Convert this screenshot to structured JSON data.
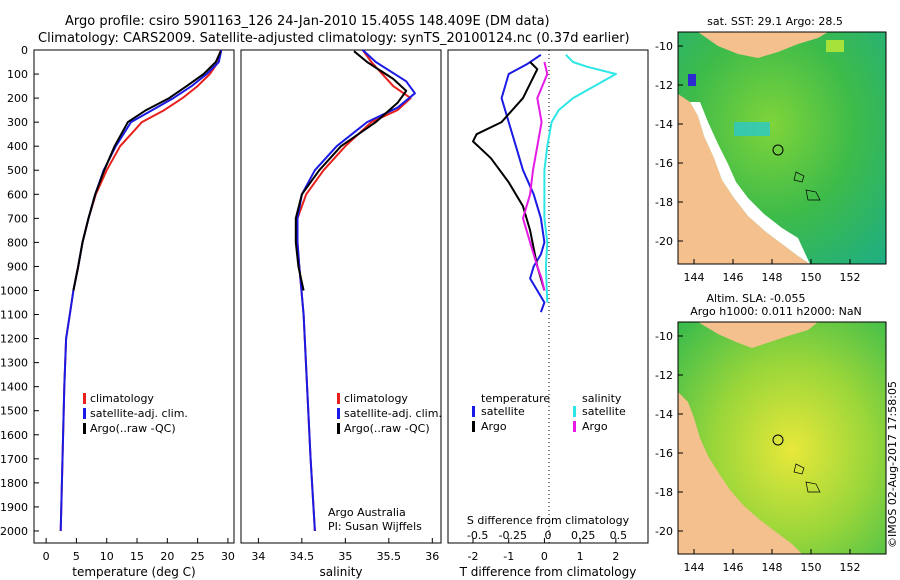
{
  "title": {
    "line1": "Argo profile: csiro 5901163_126 24-Jan-2010 15.405S 148.409E (DM data)",
    "line2": "Climatology: CARS2009. Satellite-adjusted climatology: synTS_20100124.nc (0.37d earlier)"
  },
  "colors": {
    "climatology": "#e8201c",
    "satellite": "#1a1ae6",
    "argo": "#000000",
    "sat_salinity": "#2ee6e6",
    "argo_salinity": "#e61ae6",
    "land": "#f4c08e"
  },
  "depth_ticks": [
    "0",
    "100",
    "200",
    "300",
    "400",
    "500",
    "600",
    "700",
    "800",
    "900",
    "1000",
    "1100",
    "1200",
    "1300",
    "1400",
    "1500",
    "1600",
    "1700",
    "1800",
    "1900",
    "2000"
  ],
  "chart_data": [
    {
      "type": "line",
      "title": "",
      "xlabel": "temperature (deg C)",
      "ylabel": "depth",
      "xlim": [
        -2,
        31
      ],
      "ylim": [
        0,
        2050
      ],
      "xticks": [
        "0",
        "5",
        "10",
        "15",
        "20",
        "25",
        "30"
      ],
      "xtick_values": [
        0,
        5,
        10,
        15,
        20,
        25,
        30
      ],
      "legend": [
        "climatology",
        "satellite-adj. clim.",
        "Argo(..raw -QC)"
      ],
      "series": [
        {
          "name": "climatology",
          "color_key": "climatology",
          "x": [
            28.8,
            28.4,
            27.0,
            25.0,
            22.5,
            19.5,
            15.8,
            12.2,
            10.0,
            8.2,
            7.0,
            6.0,
            5.3,
            4.5,
            3.9,
            3.3,
            3.0,
            2.8,
            2.6,
            2.5,
            2.4
          ],
          "y": [
            0,
            50,
            100,
            150,
            200,
            250,
            300,
            400,
            500,
            600,
            700,
            800,
            900,
            1000,
            1100,
            1200,
            1400,
            1600,
            1800,
            1900,
            2000
          ]
        },
        {
          "name": "satellite-adj. clim.",
          "color_key": "satellite",
          "x": [
            28.9,
            28.5,
            26.5,
            24.0,
            21.0,
            17.5,
            14.0,
            11.5,
            9.5,
            8.1,
            7.0,
            6.0,
            5.3,
            4.5,
            3.9,
            3.3,
            3.0,
            2.8,
            2.6,
            2.5,
            2.4
          ],
          "y": [
            0,
            50,
            100,
            150,
            200,
            250,
            300,
            400,
            500,
            600,
            700,
            800,
            900,
            1000,
            1100,
            1200,
            1400,
            1600,
            1800,
            1900,
            2000
          ]
        },
        {
          "name": "Argo(..raw -QC)",
          "color_key": "argo",
          "x": [
            28.8,
            28.0,
            26.0,
            23.2,
            20.3,
            16.5,
            13.5,
            11.3,
            9.6,
            8.1,
            7.0,
            6.0,
            5.3,
            4.5
          ],
          "y": [
            5,
            50,
            100,
            150,
            200,
            250,
            300,
            400,
            500,
            600,
            700,
            800,
            900,
            1000
          ]
        }
      ]
    },
    {
      "type": "line",
      "title": "",
      "xlabel": "salinity",
      "ylabel": "depth",
      "xlim": [
        33.8,
        36.1
      ],
      "ylim": [
        0,
        2050
      ],
      "xticks": [
        "34",
        "34.5",
        "35",
        "35.5",
        "36"
      ],
      "xtick_values": [
        34,
        34.5,
        35,
        35.5,
        36
      ],
      "legend": [
        "climatology",
        "satellite-adj. clim.",
        "Argo(..raw -QC)"
      ],
      "annotations": [
        "Argo Australia",
        "PI: Susan Wijffels"
      ],
      "series": [
        {
          "name": "climatology",
          "color_key": "climatology",
          "x": [
            35.2,
            35.3,
            35.55,
            35.75,
            35.6,
            35.3,
            35.0,
            34.75,
            34.55,
            34.45,
            34.45,
            34.47,
            34.52,
            34.56,
            34.6,
            34.65
          ],
          "y": [
            0,
            50,
            150,
            200,
            250,
            300,
            400,
            500,
            600,
            700,
            800,
            900,
            1100,
            1400,
            1700,
            2000
          ]
        },
        {
          "name": "satellite-adj. clim.",
          "color_key": "satellite",
          "x": [
            35.2,
            35.35,
            35.7,
            35.8,
            35.6,
            35.25,
            34.9,
            34.65,
            34.5,
            34.45,
            34.45,
            34.47,
            34.52,
            34.56,
            34.6,
            34.65
          ],
          "y": [
            0,
            50,
            130,
            180,
            240,
            300,
            400,
            500,
            600,
            700,
            800,
            900,
            1100,
            1400,
            1700,
            2000
          ]
        },
        {
          "name": "Argo(..raw -QC)",
          "color_key": "argo",
          "x": [
            35.1,
            35.25,
            35.55,
            35.7,
            35.6,
            35.35,
            34.95,
            34.7,
            34.5,
            34.43,
            34.43,
            34.46,
            34.52
          ],
          "y": [
            5,
            50,
            120,
            170,
            220,
            300,
            400,
            500,
            600,
            700,
            800,
            900,
            1000
          ]
        }
      ]
    },
    {
      "type": "line",
      "title": "",
      "xlabel": "T difference from climatology",
      "xlabel_top": "S difference from climatology",
      "ylabel": "depth",
      "xlim": [
        -2.7,
        2.9
      ],
      "ylim": [
        0,
        2050
      ],
      "xticks": [
        "-2",
        "-1",
        "0",
        "1",
        "2"
      ],
      "xtick_values": [
        -2,
        -1,
        0,
        1,
        2
      ],
      "sticks": [
        "-0.5",
        "-0.25",
        "0",
        "0.25",
        "0.5"
      ],
      "stick_values": [
        -0.5,
        -0.25,
        0,
        0.25,
        0.5
      ],
      "legend_headers": [
        "temperature",
        "salinity"
      ],
      "legend": [
        "satellite",
        "Argo",
        "satellite",
        "Argo"
      ],
      "series": [
        {
          "name": "temperature satellite",
          "color_key": "satellite",
          "units": "deg C",
          "x": [
            -0.1,
            -0.5,
            -1.0,
            -1.2,
            -1.0,
            -0.8,
            -0.6,
            -0.3,
            -0.1,
            0.0,
            -0.1,
            -0.3,
            -0.4,
            -0.2,
            0.0,
            -0.1
          ],
          "y": [
            20,
            60,
            100,
            200,
            300,
            400,
            500,
            600,
            700,
            800,
            850,
            900,
            950,
            1000,
            1050,
            1090
          ]
        },
        {
          "name": "temperature Argo",
          "color_key": "argo",
          "units": "deg C",
          "x": [
            -0.4,
            -0.2,
            -0.6,
            -1.2,
            -1.9,
            -2.0,
            -1.5,
            -1.0,
            -0.6,
            -0.4,
            -0.2,
            0.0
          ],
          "y": [
            50,
            80,
            200,
            300,
            350,
            380,
            450,
            550,
            650,
            750,
            900,
            1000
          ]
        },
        {
          "name": "salinity satellite",
          "color_key": "sat_salinity",
          "units": "psu",
          "x": [
            0.15,
            0.2,
            0.3,
            0.5,
            0.35,
            0.2,
            0.1,
            0.05,
            0.02,
            0.0,
            0.0,
            0.02,
            0.01,
            0.02
          ],
          "y": [
            20,
            50,
            70,
            100,
            150,
            200,
            250,
            300,
            400,
            500,
            700,
            800,
            900,
            1050
          ]
        },
        {
          "name": "salinity Argo",
          "color_key": "argo_salinity",
          "units": "psu",
          "x": [
            0.0,
            0.02,
            -0.05,
            -0.02,
            -0.05,
            -0.08,
            -0.1,
            -0.15,
            -0.1,
            -0.05,
            -0.02,
            0.0
          ],
          "y": [
            50,
            100,
            200,
            300,
            400,
            500,
            600,
            700,
            800,
            900,
            950,
            1000
          ]
        }
      ]
    }
  ],
  "maps": [
    {
      "title_line1": "sat. SST: 29.1  Argo: 28.5",
      "title_line2": "",
      "lon_ticks": [
        "144",
        "146",
        "148",
        "150",
        "152"
      ],
      "lat_ticks": [
        "-10",
        "-12",
        "-14",
        "-16",
        "-18",
        "-20"
      ]
    },
    {
      "title_line1": "Altim. SLA: -0.055",
      "title_line2": "Argo h1000: 0.011 h2000: NaN",
      "lon_ticks": [
        "144",
        "146",
        "148",
        "150",
        "152"
      ],
      "lat_ticks": [
        "-10",
        "-12",
        "-14",
        "-16",
        "-18",
        "-20"
      ]
    }
  ],
  "credit": "©IMOS 02-Aug-2017 17:58:05"
}
